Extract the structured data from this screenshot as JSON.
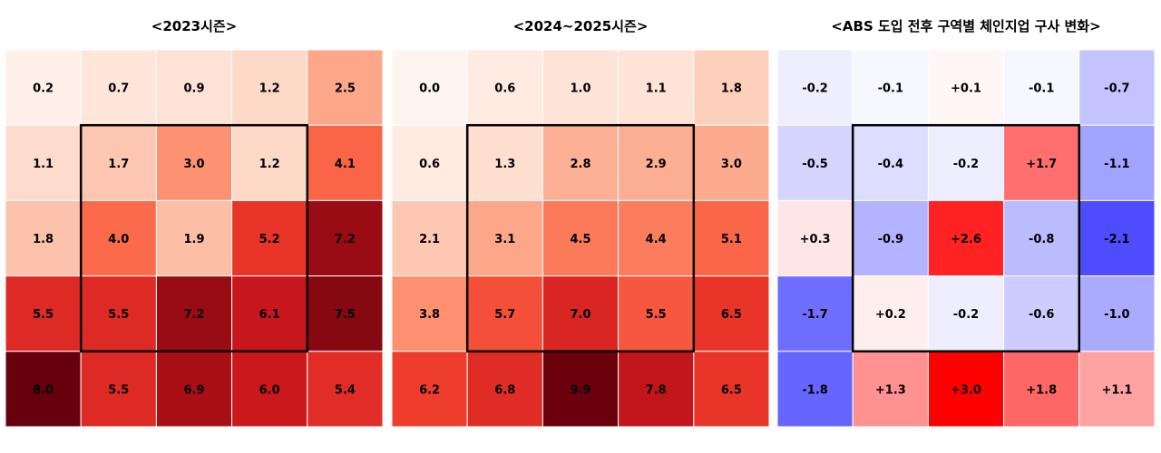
{
  "chart_data": [
    {
      "type": "heatmap",
      "title": "<2023시즌>",
      "colormap": "Reds",
      "vmin": 0,
      "vmax": 8,
      "strike_zone": "center 3x3 (rows 2-4, cols 2-4)",
      "rows": 5,
      "cols": 5,
      "values": [
        [
          0.2,
          0.7,
          0.9,
          1.2,
          2.5
        ],
        [
          1.1,
          1.7,
          3.0,
          1.2,
          4.1
        ],
        [
          1.8,
          4.0,
          1.9,
          5.2,
          7.2
        ],
        [
          5.5,
          5.5,
          7.2,
          6.1,
          7.5
        ],
        [
          8.0,
          5.5,
          6.9,
          6.0,
          5.4
        ]
      ],
      "labels": [
        [
          "0.2",
          "0.7",
          "0.9",
          "1.2",
          "2.5"
        ],
        [
          "1.1",
          "1.7",
          "3.0",
          "1.2",
          "4.1"
        ],
        [
          "1.8",
          "4.0",
          "1.9",
          "5.2",
          "7.2"
        ],
        [
          "5.5",
          "5.5",
          "7.2",
          "6.1",
          "7.5"
        ],
        [
          "8.0",
          "5.5",
          "6.9",
          "6.0",
          "5.4"
        ]
      ]
    },
    {
      "type": "heatmap",
      "title": "<2024~2025시즌>",
      "colormap": "Reds",
      "vmin": 0,
      "vmax": 10,
      "strike_zone": "center 3x3 (rows 2-4, cols 2-4)",
      "rows": 5,
      "cols": 5,
      "values": [
        [
          0.0,
          0.6,
          1.0,
          1.1,
          1.8
        ],
        [
          0.6,
          1.3,
          2.8,
          2.9,
          3.0
        ],
        [
          2.1,
          3.1,
          4.5,
          4.4,
          5.1
        ],
        [
          3.8,
          5.7,
          7.0,
          5.5,
          6.5
        ],
        [
          6.2,
          6.8,
          9.9,
          7.8,
          6.5
        ]
      ],
      "labels": [
        [
          "0.0",
          "0.6",
          "1.0",
          "1.1",
          "1.8"
        ],
        [
          "0.6",
          "1.3",
          "2.8",
          "2.9",
          "3.0"
        ],
        [
          "2.1",
          "3.1",
          "4.5",
          "4.4",
          "5.1"
        ],
        [
          "3.8",
          "5.7",
          "7.0",
          "5.5",
          "6.5"
        ],
        [
          "6.2",
          "6.8",
          "9.9",
          "7.8",
          "6.5"
        ]
      ]
    },
    {
      "type": "heatmap",
      "title": "<ABS 도입 전후 구역별 체인지업 구사 변화>",
      "colormap": "bwr",
      "vmin": -3,
      "vmax": 3,
      "strike_zone": "center 3x3 (rows 2-4, cols 2-4)",
      "rows": 5,
      "cols": 5,
      "values": [
        [
          -0.2,
          -0.1,
          0.1,
          -0.1,
          -0.7
        ],
        [
          -0.5,
          -0.4,
          -0.2,
          1.7,
          -1.1
        ],
        [
          0.3,
          -0.9,
          2.6,
          -0.8,
          -2.1
        ],
        [
          -1.7,
          0.2,
          -0.2,
          -0.6,
          -1.0
        ],
        [
          -1.8,
          1.3,
          3.0,
          1.8,
          1.1
        ]
      ],
      "labels": [
        [
          "-0.2",
          "-0.1",
          "+0.1",
          "-0.1",
          "-0.7"
        ],
        [
          "-0.5",
          "-0.4",
          "-0.2",
          "+1.7",
          "-1.1"
        ],
        [
          "+0.3",
          "-0.9",
          "+2.6",
          "-0.8",
          "-2.1"
        ],
        [
          "-1.7",
          "+0.2",
          "-0.2",
          "-0.6",
          "-1.0"
        ],
        [
          "-1.8",
          "+1.3",
          "+3.0",
          "+1.8",
          "+1.1"
        ]
      ]
    }
  ]
}
